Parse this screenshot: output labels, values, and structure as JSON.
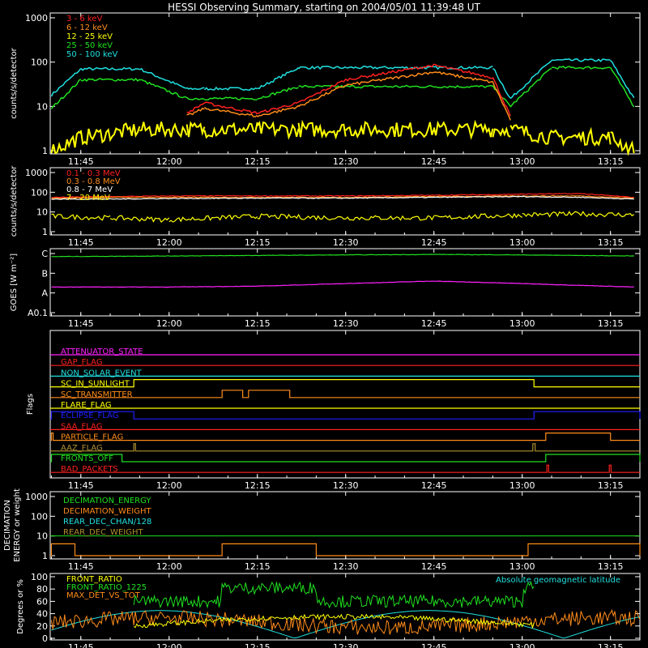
{
  "title": "HESSI Observing Summary, starting on 2004/05/01 11:39:48 UT",
  "time_ticks": [
    "11:45",
    "12:00",
    "12:15",
    "12:30",
    "12:45",
    "13:00",
    "13:15"
  ],
  "time_ticks_minutes": [
    45,
    60,
    75,
    90,
    105,
    120,
    135
  ],
  "time_range_minutes": [
    39.8,
    140
  ],
  "panels": {
    "rates": {
      "ylabel": "counts/s/detector",
      "yticks": [
        "1",
        "10",
        "100",
        "1000"
      ],
      "legend": [
        {
          "label": "3 - 6 keV",
          "color": "#ff2020"
        },
        {
          "label": "6 - 12 keV",
          "color": "#ff8c1a"
        },
        {
          "label": "12 - 25 keV",
          "color": "#ffff00"
        },
        {
          "label": "25 - 50 keV",
          "color": "#20e020"
        },
        {
          "label": "50 - 100 keV",
          "color": "#20e0e0"
        }
      ]
    },
    "high": {
      "ylabel": "counts/s/detector",
      "yticks": [
        "1",
        "10",
        "100",
        "1000"
      ],
      "legend": [
        {
          "label": "0.1 - 0.3 MeV",
          "color": "#ff2020"
        },
        {
          "label": "0.3 - 0.8 MeV",
          "color": "#ff8c1a"
        },
        {
          "label": "0.8 - 7 MeV",
          "color": "#ffffff"
        },
        {
          "label": "7 - 20 MeV",
          "color": "#ffff00"
        }
      ]
    },
    "goes": {
      "ylabel": "GOES [W m⁻²]",
      "yticks": [
        "A0.1",
        "A",
        "B",
        "C"
      ],
      "lines": [
        {
          "color": "#20e020"
        },
        {
          "color": "#ff20ff"
        }
      ]
    },
    "flags": {
      "ylabel": "Flags",
      "items": [
        {
          "label": "ATTENUATOR_STATE",
          "color": "#ff20ff"
        },
        {
          "label": "GAP_FLAG",
          "color": "#ff2020"
        },
        {
          "label": "NON_SOLAR_EVENT",
          "color": "#20e0e0"
        },
        {
          "label": "SC_IN_SUNLIGHT",
          "color": "#ffff00"
        },
        {
          "label": "SC_TRANSMITTER",
          "color": "#ff8c1a"
        },
        {
          "label": "FLARE_FLAG",
          "color": "#ffff00"
        },
        {
          "label": "ECLIPSE_FLAG",
          "color": "#2020ff"
        },
        {
          "label": "SAA_FLAG",
          "color": "#ff2020"
        },
        {
          "label": "PARTICLE_FLAG",
          "color": "#ff8c1a"
        },
        {
          "label": "AAZ_FLAG",
          "color": "#b09030"
        },
        {
          "label": "FRONTS_OFF",
          "color": "#20e020"
        },
        {
          "label": "BAD_PACKETS",
          "color": "#ff2020"
        }
      ]
    },
    "decimation": {
      "ylabel_line1": "DECIMATION",
      "ylabel_line2": "ENERGY or weight",
      "yticks": [
        "1",
        "10",
        "100",
        "1000"
      ],
      "legend": [
        {
          "label": "DECIMATION_ENERGY",
          "color": "#20e020"
        },
        {
          "label": "DECIMATION_WEIGHT",
          "color": "#ff8c1a"
        },
        {
          "label": "REAR_DEC_CHAN/128",
          "color": "#20e0e0"
        },
        {
          "label": "REAR_DEC_WEIGHT",
          "color": "#b09030"
        }
      ]
    },
    "ratios": {
      "ylabel": "Degrees or %",
      "yticks": [
        "0",
        "20",
        "40",
        "60",
        "80",
        "100"
      ],
      "legend": [
        {
          "label": "FRONT_RATIO",
          "color": "#ffff00"
        },
        {
          "label": "FRONT_RATIO_1225",
          "color": "#20e020"
        },
        {
          "label": "MAX_DET_VS_TOT",
          "color": "#ff8c1a"
        }
      ],
      "right_label": {
        "label": "Absolute geomagnetic latitude",
        "color": "#20e0e0"
      }
    }
  },
  "chart_data": [
    {
      "type": "line",
      "title": "HESSI Observing Summary, starting on 2004/05/01 11:39:48 UT",
      "ylabel": "counts/s/detector",
      "yscale": "log",
      "ylim": [
        1,
        1000
      ],
      "xlim": [
        "11:39:48",
        "13:20"
      ],
      "x": [
        "11:40",
        "11:45",
        "11:55",
        "12:03",
        "12:06",
        "12:15",
        "12:22",
        "12:30",
        "12:45",
        "12:55",
        "12:58",
        "13:05",
        "13:15",
        "13:19"
      ],
      "series": [
        {
          "name": "3 - 6 keV",
          "values": [
            null,
            null,
            null,
            7,
            12,
            7,
            12,
            40,
            85,
            45,
            6,
            null,
            null,
            null
          ]
        },
        {
          "name": "6 - 12 keV",
          "values": [
            null,
            null,
            null,
            6,
            9,
            6,
            10,
            30,
            60,
            35,
            5,
            null,
            null,
            null
          ]
        },
        {
          "name": "12 - 25 keV",
          "values": [
            1,
            2,
            3,
            3,
            3,
            3,
            3,
            3,
            3,
            3,
            3,
            2,
            2,
            1
          ]
        },
        {
          "name": "25 - 50 keV",
          "values": [
            9,
            40,
            40,
            15,
            15,
            15,
            28,
            28,
            28,
            28,
            10,
            75,
            75,
            10
          ]
        },
        {
          "name": "50 - 100 keV",
          "values": [
            18,
            70,
            70,
            25,
            25,
            25,
            75,
            75,
            75,
            75,
            15,
            110,
            110,
            15
          ]
        }
      ]
    },
    {
      "type": "line",
      "ylabel": "counts/s/detector",
      "yscale": "log",
      "ylim": [
        1,
        1000
      ],
      "x": [
        "11:40",
        "11:50",
        "12:00",
        "12:15",
        "12:30",
        "12:45",
        "13:00",
        "13:10",
        "13:19"
      ],
      "series": [
        {
          "name": "0.1 - 0.3 MeV",
          "values": [
            55,
            60,
            65,
            65,
            65,
            70,
            80,
            85,
            55
          ]
        },
        {
          "name": "0.3 - 0.8 MeV",
          "values": [
            50,
            55,
            55,
            55,
            55,
            60,
            65,
            65,
            50
          ]
        },
        {
          "name": "0.8 - 7 MeV",
          "values": [
            45,
            45,
            48,
            50,
            50,
            55,
            60,
            55,
            45
          ]
        },
        {
          "name": "7 - 20 MeV",
          "values": [
            6,
            5,
            4,
            6,
            5,
            5,
            7,
            8,
            7
          ]
        }
      ]
    },
    {
      "type": "line",
      "ylabel": "GOES [W m⁻²]",
      "yscale": "log",
      "yticks": [
        "A0.1",
        "A",
        "B",
        "C"
      ],
      "x": [
        "11:40",
        "12:00",
        "12:15",
        "12:30",
        "12:45",
        "13:00",
        "13:19"
      ],
      "series": [
        {
          "values": [
            7e-07,
            7.5e-07,
            8e-07,
            8.5e-07,
            9e-07,
            8.5e-07,
            7.5e-07
          ]
        },
        {
          "values": [
            2e-08,
            2e-08,
            2.2e-08,
            3e-08,
            4e-08,
            3e-08,
            2e-08
          ]
        }
      ]
    }
  ]
}
